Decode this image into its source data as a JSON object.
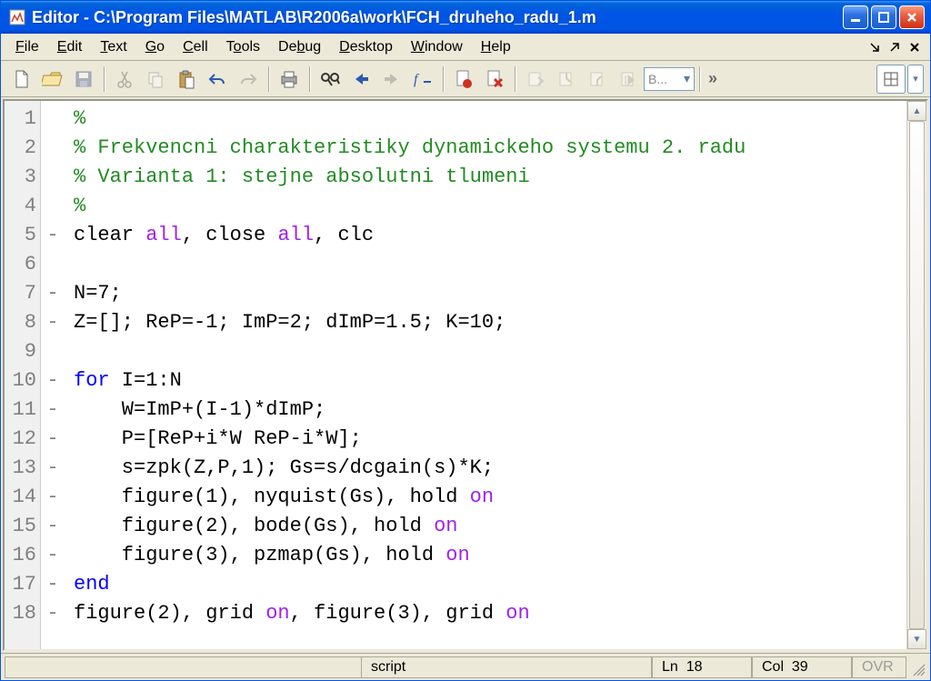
{
  "window": {
    "title": "Editor - C:\\Program Files\\MATLAB\\R2006a\\work\\FCH_druheho_radu_1.m"
  },
  "menu": {
    "file": "File",
    "edit": "Edit",
    "text": "Text",
    "go": "Go",
    "cell": "Cell",
    "tools": "Tools",
    "debug": "Debug",
    "desktop": "Desktop",
    "window": "Window",
    "help": "Help"
  },
  "toolbar": {
    "base_combo": "B..."
  },
  "code_lines": [
    {
      "n": 1,
      "m": "",
      "tokens": [
        {
          "c": "c-comment",
          "t": "%"
        }
      ]
    },
    {
      "n": 2,
      "m": "",
      "tokens": [
        {
          "c": "c-comment",
          "t": "% Frekvencni charakteristiky dynamickeho systemu 2. radu"
        }
      ]
    },
    {
      "n": 3,
      "m": "",
      "tokens": [
        {
          "c": "c-comment",
          "t": "% Varianta 1: stejne absolutni tlumeni"
        }
      ]
    },
    {
      "n": 4,
      "m": "",
      "tokens": [
        {
          "c": "c-comment",
          "t": "%"
        }
      ]
    },
    {
      "n": 5,
      "m": "-",
      "tokens": [
        {
          "t": "clear "
        },
        {
          "c": "c-string",
          "t": "all"
        },
        {
          "t": ", close "
        },
        {
          "c": "c-string",
          "t": "all"
        },
        {
          "t": ", clc"
        }
      ]
    },
    {
      "n": 6,
      "m": "",
      "tokens": []
    },
    {
      "n": 7,
      "m": "-",
      "tokens": [
        {
          "t": "N=7;"
        }
      ]
    },
    {
      "n": 8,
      "m": "-",
      "tokens": [
        {
          "t": "Z=[]; ReP=-1; ImP=2; dImP=1.5; K=10;"
        }
      ]
    },
    {
      "n": 9,
      "m": "",
      "tokens": []
    },
    {
      "n": 10,
      "m": "-",
      "tokens": [
        {
          "c": "c-keyword",
          "t": "for"
        },
        {
          "t": " I=1:N"
        }
      ]
    },
    {
      "n": 11,
      "m": "-",
      "tokens": [
        {
          "t": "    W=ImP+(I-1)*dImP;"
        }
      ]
    },
    {
      "n": 12,
      "m": "-",
      "tokens": [
        {
          "t": "    P=[ReP+i*W ReP-i*W];"
        }
      ]
    },
    {
      "n": 13,
      "m": "-",
      "tokens": [
        {
          "t": "    s=zpk(Z,P,1); Gs=s/dcgain(s)*K;"
        }
      ]
    },
    {
      "n": 14,
      "m": "-",
      "tokens": [
        {
          "t": "    figure(1), nyquist(Gs), hold "
        },
        {
          "c": "c-string",
          "t": "on"
        }
      ]
    },
    {
      "n": 15,
      "m": "-",
      "tokens": [
        {
          "t": "    figure(2), bode(Gs), hold "
        },
        {
          "c": "c-string",
          "t": "on"
        }
      ]
    },
    {
      "n": 16,
      "m": "-",
      "tokens": [
        {
          "t": "    figure(3), pzmap(Gs), hold "
        },
        {
          "c": "c-string",
          "t": "on"
        }
      ]
    },
    {
      "n": 17,
      "m": "-",
      "tokens": [
        {
          "c": "c-keyword",
          "t": "end"
        }
      ]
    },
    {
      "n": 18,
      "m": "-",
      "tokens": [
        {
          "t": "figure(2), grid "
        },
        {
          "c": "c-string",
          "t": "on"
        },
        {
          "t": ", figure(3), grid "
        },
        {
          "c": "c-string",
          "t": "on"
        }
      ]
    }
  ],
  "status": {
    "type": "script",
    "ln_label": "Ln",
    "ln": "18",
    "col_label": "Col",
    "col": "39",
    "ovr": "OVR"
  }
}
